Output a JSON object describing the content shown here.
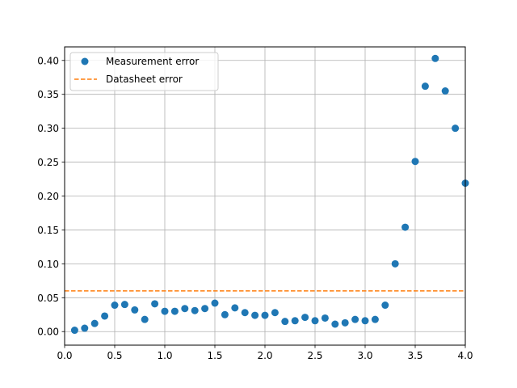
{
  "chart_data": {
    "type": "scatter",
    "title": "",
    "xlabel": "",
    "ylabel": "",
    "xlim": [
      0.0,
      4.0
    ],
    "ylim": [
      -0.02,
      0.42
    ],
    "grid": true,
    "legend_position": "top-left",
    "x_ticks": [
      {
        "value": 0.0,
        "label": "0.0"
      },
      {
        "value": 0.5,
        "label": "0.5"
      },
      {
        "value": 1.0,
        "label": "1.0"
      },
      {
        "value": 1.5,
        "label": "1.5"
      },
      {
        "value": 2.0,
        "label": "2.0"
      },
      {
        "value": 2.5,
        "label": "2.5"
      },
      {
        "value": 3.0,
        "label": "3.0"
      },
      {
        "value": 3.5,
        "label": "3.5"
      },
      {
        "value": 4.0,
        "label": "4.0"
      }
    ],
    "y_ticks": [
      {
        "value": 0.0,
        "label": "0.00"
      },
      {
        "value": 0.05,
        "label": "0.05"
      },
      {
        "value": 0.1,
        "label": "0.10"
      },
      {
        "value": 0.15,
        "label": "0.15"
      },
      {
        "value": 0.2,
        "label": "0.20"
      },
      {
        "value": 0.25,
        "label": "0.25"
      },
      {
        "value": 0.3,
        "label": "0.30"
      },
      {
        "value": 0.35,
        "label": "0.35"
      },
      {
        "value": 0.4,
        "label": "0.40"
      }
    ],
    "series": [
      {
        "name": "Measurement error",
        "kind": "scatter",
        "color": "#1f77b4",
        "x": [
          0.1,
          0.2,
          0.3,
          0.4,
          0.5,
          0.6,
          0.7,
          0.8,
          0.9,
          1.0,
          1.1,
          1.2,
          1.3,
          1.4,
          1.5,
          1.6,
          1.7,
          1.8,
          1.9,
          2.0,
          2.1,
          2.2,
          2.3,
          2.4,
          2.5,
          2.6,
          2.7,
          2.8,
          2.9,
          3.0,
          3.1,
          3.2,
          3.3,
          3.4,
          3.5,
          3.6,
          3.7,
          3.8,
          3.9,
          4.0
        ],
        "y": [
          0.002,
          0.005,
          0.012,
          0.023,
          0.039,
          0.04,
          0.032,
          0.018,
          0.041,
          0.03,
          0.03,
          0.034,
          0.031,
          0.034,
          0.042,
          0.025,
          0.035,
          0.028,
          0.024,
          0.024,
          0.028,
          0.015,
          0.016,
          0.021,
          0.016,
          0.02,
          0.011,
          0.013,
          0.018,
          0.016,
          0.018,
          0.039,
          0.1,
          0.154,
          0.251,
          0.362,
          0.403,
          0.355,
          0.3,
          0.219
        ]
      },
      {
        "name": "Datasheet error",
        "kind": "line",
        "style": "dashed",
        "color": "#ff7f0e",
        "x": [
          0.0,
          4.0
        ],
        "y": [
          0.06,
          0.06
        ]
      }
    ]
  }
}
